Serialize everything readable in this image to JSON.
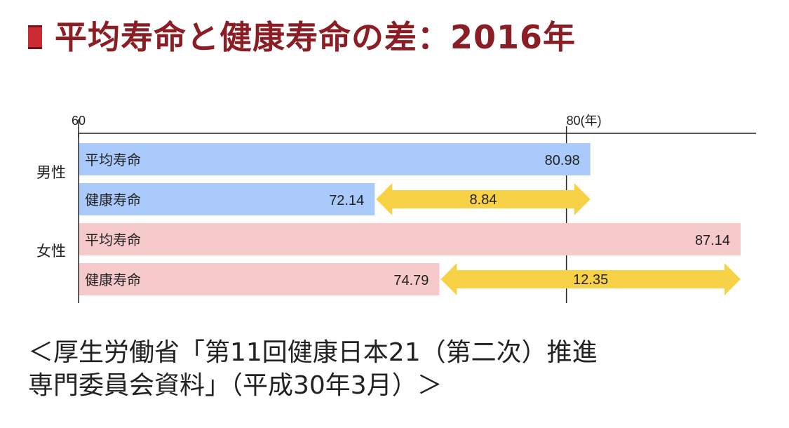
{
  "title": "平均寿命と健康寿命の差：2016年",
  "colors": {
    "title": "#8b1e24",
    "marker_fill": "#cc2b33",
    "marker_border": "#7a1217",
    "male_bar": "#a9cafb",
    "female_bar": "#f6cacb",
    "arrow": "#f7d146",
    "axis": "#222222",
    "text": "#222222"
  },
  "chart_data": {
    "type": "bar",
    "orientation": "horizontal",
    "xlim": [
      60,
      87.14
    ],
    "axis_ticks": [
      {
        "value": 60,
        "label": "60"
      },
      {
        "value": 80,
        "label": "80(年)"
      }
    ],
    "groups": [
      {
        "name": "男性",
        "bars": [
          {
            "label": "平均寿命",
            "value": 80.98,
            "value_label": "80.98"
          },
          {
            "label": "健康寿命",
            "value": 72.14,
            "value_label": "72.14"
          }
        ],
        "difference": {
          "value": 8.84,
          "label": "8.84"
        }
      },
      {
        "name": "女性",
        "bars": [
          {
            "label": "平均寿命",
            "value": 87.14,
            "value_label": "87.14"
          },
          {
            "label": "健康寿命",
            "value": 74.79,
            "value_label": "74.79"
          }
        ],
        "difference": {
          "value": 12.35,
          "label": "12.35"
        }
      }
    ],
    "grid": false,
    "legend": "none"
  },
  "source": {
    "line1": "＜厚生労働省「第11回健康日本21（第二次）推進",
    "line2": "専門委員会資料」（平成30年3月）＞"
  }
}
